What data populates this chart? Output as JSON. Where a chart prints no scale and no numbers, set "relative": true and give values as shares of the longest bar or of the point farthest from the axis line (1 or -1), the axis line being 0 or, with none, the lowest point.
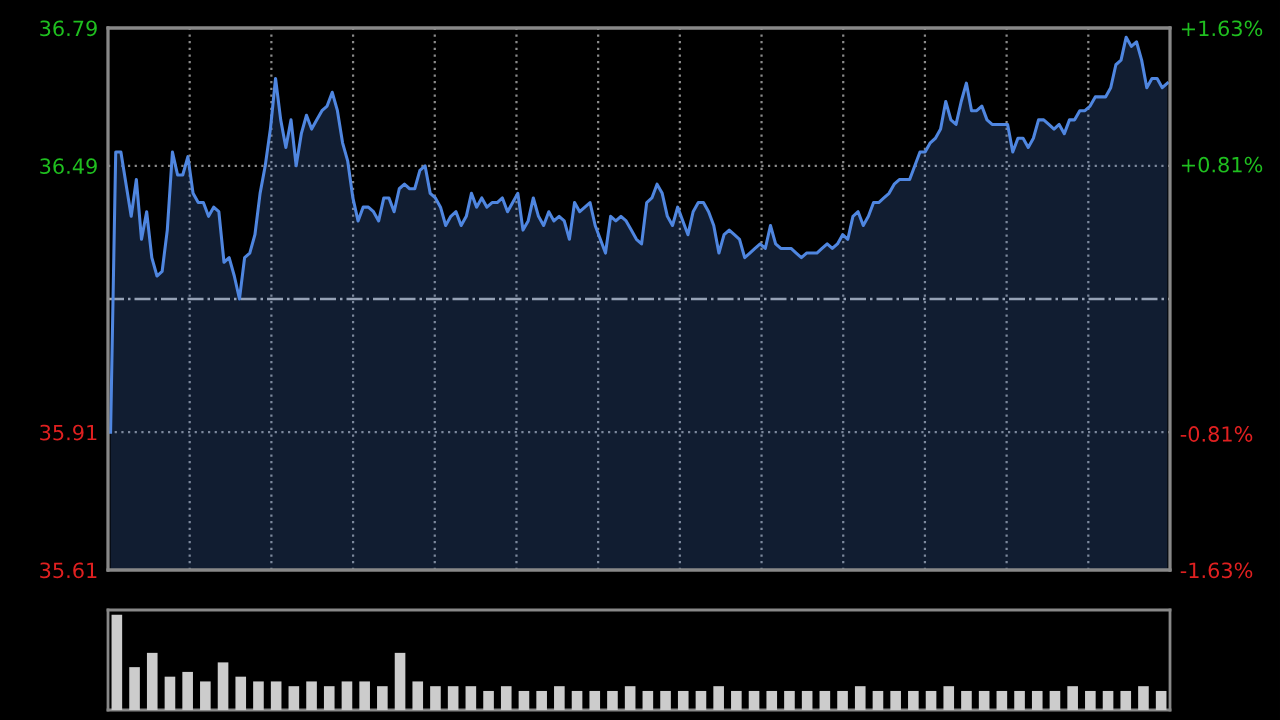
{
  "chart_data": [
    {
      "type": "area",
      "tick_labels": "y",
      "grid": true,
      "categories": [
        null,
        null,
        null,
        null,
        null,
        null,
        null,
        null,
        null,
        null,
        null,
        null,
        null,
        null,
        null,
        null,
        null,
        null,
        null,
        null,
        null,
        null,
        null,
        null,
        null,
        null,
        null,
        null,
        null,
        null,
        null,
        null,
        null,
        null,
        null,
        null,
        null,
        null,
        null,
        null,
        null,
        null,
        null,
        null,
        null,
        null,
        null,
        null,
        null,
        null,
        null,
        null,
        null,
        null,
        null,
        null,
        null,
        null,
        null,
        null,
        null,
        null,
        null,
        null,
        null,
        null,
        null,
        null,
        null,
        null,
        null,
        null,
        null,
        null,
        null,
        null,
        null,
        null,
        null,
        null,
        null,
        null,
        null,
        null,
        null,
        null,
        null,
        null,
        null,
        null,
        null,
        null,
        null,
        null,
        null,
        null,
        null,
        null,
        null,
        null,
        null,
        null,
        null,
        null,
        null,
        null,
        null,
        null,
        null,
        null,
        null,
        null,
        null,
        null,
        null,
        null,
        null,
        null,
        null,
        null,
        null,
        null,
        null,
        null,
        null,
        null,
        null,
        null,
        null,
        null,
        null,
        null,
        null,
        null,
        null,
        null,
        null,
        null,
        null,
        null,
        null,
        null,
        null,
        null,
        null,
        null,
        null,
        null,
        null,
        null,
        null,
        null,
        null,
        null,
        null,
        null,
        null,
        null,
        null,
        null,
        null,
        null,
        null,
        null,
        null,
        null,
        null,
        null,
        null,
        null,
        null,
        null,
        null,
        null,
        null,
        null,
        null,
        null,
        null,
        null,
        null,
        null,
        null,
        null,
        null,
        null,
        null,
        null,
        null,
        null,
        null,
        null,
        null,
        null,
        null,
        null,
        null,
        null,
        null,
        null,
        null,
        null,
        null,
        null,
        null,
        null
      ],
      "series": [
        {
          "color": "#4f86e0",
          "values": [
            35.91,
            36.52,
            36.52,
            36.45,
            36.38,
            36.46,
            36.33,
            36.39,
            36.29,
            36.25,
            36.26,
            36.35,
            36.52,
            36.47,
            36.47,
            36.51,
            36.43,
            36.41,
            36.41,
            36.38,
            36.4,
            36.39,
            36.28,
            36.29,
            36.25,
            36.2,
            36.29,
            36.3,
            36.34,
            36.43,
            36.49,
            36.57,
            36.68,
            36.59,
            36.53,
            36.59,
            36.49,
            36.56,
            36.6,
            36.57,
            36.59,
            36.61,
            36.62,
            36.65,
            36.61,
            36.54,
            36.5,
            36.42,
            36.37,
            36.4,
            36.4,
            36.39,
            36.37,
            36.42,
            36.42,
            36.39,
            36.44,
            36.45,
            36.44,
            36.44,
            36.48,
            36.49,
            36.43,
            36.42,
            36.4,
            36.36,
            36.38,
            36.39,
            36.36,
            36.38,
            36.43,
            36.4,
            36.42,
            36.4,
            36.41,
            36.41,
            36.42,
            36.39,
            36.41,
            36.43,
            36.35,
            36.37,
            36.42,
            36.38,
            36.36,
            36.39,
            36.37,
            36.38,
            36.37,
            36.33,
            36.41,
            36.39,
            36.4,
            36.41,
            36.36,
            36.33,
            36.3,
            36.38,
            36.37,
            36.38,
            36.37,
            36.35,
            36.33,
            36.32,
            36.41,
            36.42,
            36.45,
            36.43,
            36.38,
            36.36,
            36.4,
            36.37,
            36.34,
            36.39,
            36.41,
            36.41,
            36.39,
            36.36,
            36.3,
            36.34,
            36.35,
            36.34,
            36.33,
            36.29,
            36.3,
            36.31,
            36.32,
            36.31,
            36.36,
            36.32,
            36.31,
            36.31,
            36.31,
            36.3,
            36.29,
            36.3,
            36.3,
            36.3,
            36.31,
            36.32,
            36.31,
            36.32,
            36.34,
            36.33,
            36.38,
            36.39,
            36.36,
            36.38,
            36.41,
            36.41,
            36.42,
            36.43,
            36.45,
            36.46,
            36.46,
            36.46,
            36.49,
            36.52,
            36.52,
            36.54,
            36.55,
            36.57,
            36.63,
            36.59,
            36.58,
            36.63,
            36.67,
            36.61,
            36.61,
            36.62,
            36.59,
            36.58,
            36.58,
            36.58,
            36.58,
            36.52,
            36.55,
            36.55,
            36.53,
            36.55,
            36.59,
            36.59,
            36.58,
            36.57,
            36.58,
            36.56,
            36.59,
            36.59,
            36.61,
            36.61,
            36.62,
            36.64,
            36.64,
            36.64,
            36.66,
            36.71,
            36.72,
            36.77,
            36.75,
            36.76,
            36.72,
            36.66,
            36.68,
            36.68,
            36.66,
            36.67
          ]
        }
      ],
      "ylim": [
        35.61,
        36.79
      ],
      "yticks": [
        35.61,
        35.91,
        36.49,
        36.79
      ],
      "y2lim": [
        -1.63,
        1.63
      ],
      "y2ticks": [
        {
          "value": -1.63,
          "label": "-1.63%"
        },
        {
          "value": -0.81,
          "label": "-0.81%"
        },
        {
          "value": 0.81,
          "label": "+0.81%"
        },
        {
          "value": 1.63,
          "label": "+1.63%"
        }
      ],
      "ref_lines": [
        {
          "axis": "y",
          "value": 36.2,
          "line_style": "dashdot",
          "color": "#aaaaaa"
        }
      ]
    },
    {
      "type": "bar",
      "relative": true,
      "tick_labels": false,
      "color": "#cccccc",
      "categories": [
        null,
        null,
        null,
        null,
        null,
        null,
        null,
        null,
        null,
        null,
        null,
        null,
        null,
        null,
        null,
        null,
        null,
        null,
        null,
        null,
        null,
        null,
        null,
        null,
        null,
        null,
        null,
        null,
        null,
        null,
        null,
        null,
        null,
        null,
        null,
        null,
        null,
        null,
        null,
        null,
        null,
        null,
        null,
        null,
        null,
        null,
        null,
        null,
        null,
        null,
        null,
        null,
        null,
        null,
        null,
        null,
        null,
        null,
        null,
        null
      ],
      "values": [
        1,
        0.45,
        0.6,
        0.35,
        0.4,
        0.3,
        0.5,
        0.35,
        0.3,
        0.3,
        0.25,
        0.3,
        0.25,
        0.3,
        0.3,
        0.25,
        0.6,
        0.3,
        0.25,
        0.25,
        0.25,
        0.2,
        0.25,
        0.2,
        0.2,
        0.25,
        0.2,
        0.2,
        0.2,
        0.25,
        0.2,
        0.2,
        0.2,
        0.2,
        0.25,
        0.2,
        0.2,
        0.2,
        0.2,
        0.2,
        0.2,
        0.2,
        0.25,
        0.2,
        0.2,
        0.2,
        0.2,
        0.25,
        0.2,
        0.2,
        0.2,
        0.2,
        0.2,
        0.2,
        0.25,
        0.2,
        0.2,
        0.2,
        0.25,
        0.2
      ]
    }
  ]
}
